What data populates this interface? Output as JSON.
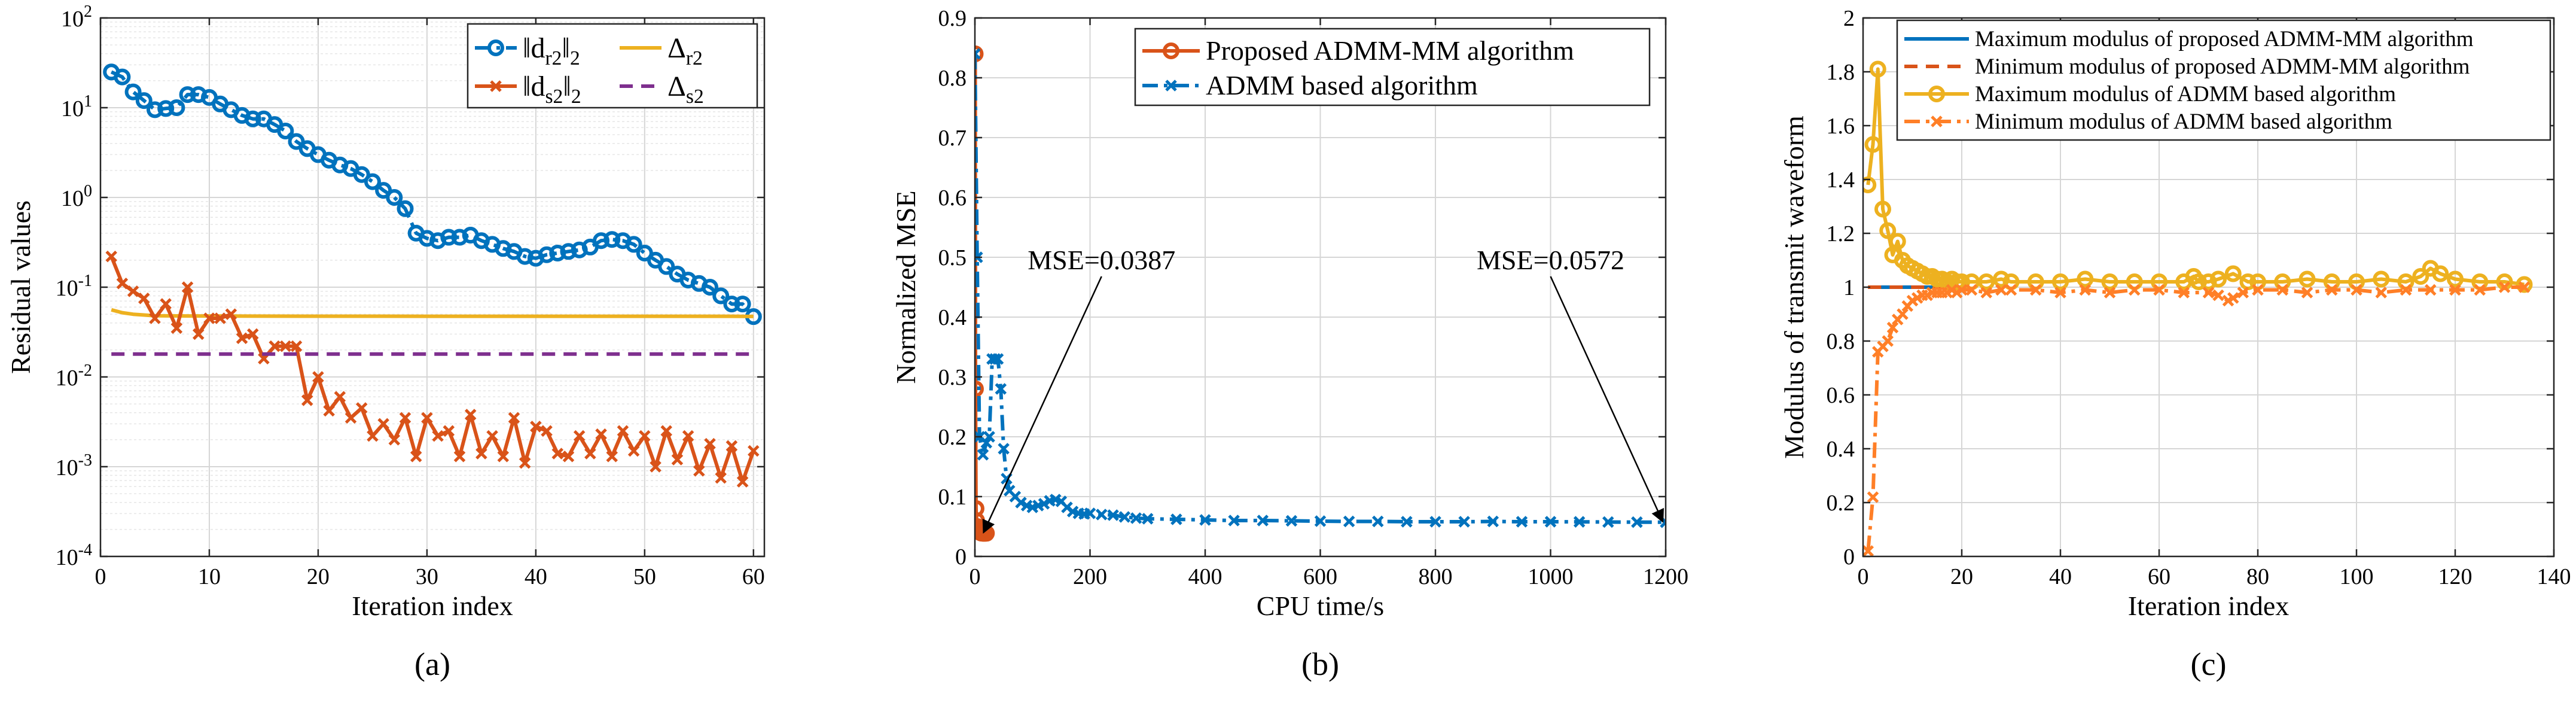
{
  "colors": {
    "blue": "#0072BD",
    "orange": "#D95319",
    "yellow": "#EDB120",
    "purple": "#7E2F8E",
    "grid": "#d6d6d6",
    "axis": "#262626"
  },
  "chart_data": [
    {
      "type": "line",
      "label": "(a)",
      "xlabel": "Iteration index",
      "ylabel": "Residual values",
      "yscale": "log",
      "xlim": [
        0,
        61
      ],
      "ylim": [
        0.0001,
        100
      ],
      "xticks": [
        0,
        10,
        20,
        30,
        40,
        50,
        60
      ],
      "xtick_labels": [
        "0",
        "10",
        "20",
        "30",
        "40",
        "50",
        "60"
      ],
      "ytick_exps": [
        -4,
        -3,
        -2,
        -1,
        0,
        1,
        2
      ],
      "ytick_base": "10",
      "legend": {
        "placement": "top-right",
        "entries": [
          {
            "text": "‖d",
            "sub": "r2",
            "tail": "‖",
            "sub2": "2",
            "series": 0
          },
          {
            "text": "Δ",
            "sub": "r2",
            "tail": "",
            "sub2": "",
            "series": 1
          },
          {
            "text": "‖d",
            "sub": "s2",
            "tail": "‖",
            "sub2": "2",
            "series": 2
          },
          {
            "text": "Δ",
            "sub": "s2",
            "tail": "",
            "sub2": "",
            "series": 3
          }
        ]
      },
      "series": [
        {
          "name": "||d_r2||_2",
          "color": "#0072BD",
          "dash": "dashdot",
          "marker": "circle",
          "x": [
            1,
            2,
            3,
            4,
            5,
            6,
            7,
            8,
            9,
            10,
            11,
            12,
            13,
            14,
            15,
            16,
            17,
            18,
            19,
            20,
            21,
            22,
            23,
            24,
            25,
            26,
            27,
            28,
            29,
            30,
            31,
            32,
            33,
            34,
            35,
            36,
            37,
            38,
            39,
            40,
            41,
            42,
            43,
            44,
            45,
            46,
            47,
            48,
            49,
            50,
            51,
            52,
            53,
            54,
            55,
            56,
            57,
            58,
            59,
            60
          ],
          "y": [
            25,
            22,
            15,
            12,
            9.5,
            9.8,
            10,
            14,
            14,
            13,
            11,
            9.5,
            8.2,
            7.5,
            7.5,
            6.5,
            5.5,
            4.2,
            3.5,
            3.0,
            2.6,
            2.3,
            2.1,
            1.8,
            1.5,
            1.2,
            1.0,
            0.75,
            0.4,
            0.35,
            0.33,
            0.36,
            0.36,
            0.38,
            0.33,
            0.3,
            0.27,
            0.25,
            0.22,
            0.21,
            0.23,
            0.24,
            0.25,
            0.26,
            0.28,
            0.33,
            0.34,
            0.33,
            0.3,
            0.24,
            0.2,
            0.17,
            0.14,
            0.12,
            0.11,
            0.1,
            0.08,
            0.065,
            0.065,
            0.047
          ]
        },
        {
          "name": "Delta_r2",
          "color": "#EDB120",
          "dash": "solid",
          "marker": "none",
          "x": [
            1,
            2,
            3,
            4,
            5,
            8,
            10,
            15,
            20,
            30,
            40,
            50,
            58,
            60
          ],
          "y": [
            0.056,
            0.052,
            0.05,
            0.049,
            0.048,
            0.0478,
            0.0478,
            0.0476,
            0.0475,
            0.0474,
            0.0474,
            0.0474,
            0.0474,
            0.0472
          ]
        },
        {
          "name": "||d_s2||_2",
          "color": "#D95319",
          "dash": "solid",
          "marker": "x",
          "x": [
            1,
            2,
            3,
            4,
            5,
            6,
            7,
            8,
            9,
            10,
            11,
            12,
            13,
            14,
            15,
            16,
            17,
            18,
            19,
            20,
            21,
            22,
            23,
            24,
            25,
            26,
            27,
            28,
            29,
            30,
            31,
            32,
            33,
            34,
            35,
            36,
            37,
            38,
            39,
            40,
            41,
            42,
            43,
            44,
            45,
            46,
            47,
            48,
            49,
            50,
            51,
            52,
            53,
            54,
            55,
            56,
            57,
            58,
            59,
            60
          ],
          "y": [
            0.22,
            0.11,
            0.09,
            0.075,
            0.045,
            0.065,
            0.035,
            0.1,
            0.03,
            0.045,
            0.045,
            0.05,
            0.027,
            0.03,
            0.016,
            0.022,
            0.022,
            0.022,
            0.0055,
            0.01,
            0.0042,
            0.006,
            0.0035,
            0.0045,
            0.0022,
            0.003,
            0.002,
            0.0035,
            0.0013,
            0.0035,
            0.0022,
            0.0025,
            0.0013,
            0.0038,
            0.0014,
            0.0022,
            0.0013,
            0.0035,
            0.0011,
            0.0028,
            0.0025,
            0.0014,
            0.0013,
            0.0022,
            0.0014,
            0.0023,
            0.0013,
            0.0025,
            0.0015,
            0.0022,
            0.001,
            0.0025,
            0.0012,
            0.0022,
            0.0009,
            0.0018,
            0.00075,
            0.0017,
            0.00068,
            0.0015
          ]
        },
        {
          "name": "Delta_s2",
          "color": "#7E2F8E",
          "dash": "dashed",
          "marker": "none",
          "x": [
            1,
            60
          ],
          "y": [
            0.018,
            0.018
          ]
        }
      ]
    },
    {
      "type": "line",
      "label": "(b)",
      "xlabel": "CPU time/s",
      "ylabel": "Normalized MSE",
      "yscale": "linear",
      "xlim": [
        0,
        1200
      ],
      "ylim": [
        0,
        0.9
      ],
      "xticks": [
        0,
        200,
        400,
        600,
        800,
        1000,
        1200
      ],
      "xtick_labels": [
        "0",
        "200",
        "400",
        "600",
        "800",
        "1000",
        "1200"
      ],
      "yticks": [
        0,
        0.1,
        0.2,
        0.3,
        0.4,
        0.5,
        0.6,
        0.7,
        0.8,
        0.9
      ],
      "ytick_labels": [
        "0",
        "0.1",
        "0.2",
        "0.3",
        "0.4",
        "0.5",
        "0.6",
        "0.7",
        "0.8",
        "0.9"
      ],
      "legend": {
        "placement": "top-right",
        "entries": [
          {
            "text": "Proposed ADMM-MM algorithm",
            "series": 0
          },
          {
            "text": "ADMM based algorithm",
            "series": 1
          }
        ]
      },
      "annotations": [
        {
          "text": "MSE=0.0387",
          "text_x": 220,
          "text_y": 0.48,
          "target_x": 15,
          "target_y": 0.04
        },
        {
          "text": "MSE=0.0572",
          "text_x": 1000,
          "text_y": 0.48,
          "target_x": 1195,
          "target_y": 0.058
        }
      ],
      "series": [
        {
          "name": "Proposed ADMM-MM algorithm",
          "color": "#D95319",
          "dash": "solid",
          "marker": "circle",
          "x": [
            0.5,
            1,
            2,
            3,
            4,
            5,
            6,
            7,
            8,
            9,
            10,
            11,
            12,
            13,
            14,
            15,
            16,
            18,
            20
          ],
          "y": [
            0.84,
            0.28,
            0.08,
            0.06,
            0.05,
            0.045,
            0.043,
            0.042,
            0.041,
            0.04,
            0.04,
            0.039,
            0.039,
            0.039,
            0.0387,
            0.0387,
            0.0387,
            0.0387,
            0.0387
          ]
        },
        {
          "name": "ADMM based algorithm",
          "color": "#0072BD",
          "dash": "dashdot",
          "marker": "x",
          "x": [
            0,
            4,
            8,
            14,
            20,
            25,
            30,
            35,
            40,
            45,
            50,
            55,
            60,
            70,
            80,
            90,
            100,
            110,
            120,
            130,
            140,
            150,
            160,
            170,
            180,
            190,
            200,
            220,
            240,
            260,
            280,
            300,
            350,
            400,
            450,
            500,
            550,
            600,
            650,
            700,
            750,
            800,
            850,
            900,
            950,
            1000,
            1050,
            1100,
            1150,
            1200
          ],
          "y": [
            0.84,
            0.5,
            0.2,
            0.17,
            0.19,
            0.2,
            0.33,
            0.33,
            0.33,
            0.28,
            0.18,
            0.13,
            0.11,
            0.1,
            0.09,
            0.085,
            0.082,
            0.085,
            0.088,
            0.093,
            0.095,
            0.092,
            0.082,
            0.075,
            0.072,
            0.071,
            0.072,
            0.07,
            0.069,
            0.066,
            0.064,
            0.063,
            0.062,
            0.061,
            0.06,
            0.06,
            0.0595,
            0.059,
            0.0585,
            0.0585,
            0.058,
            0.058,
            0.058,
            0.0585,
            0.058,
            0.058,
            0.0578,
            0.0575,
            0.0573,
            0.0572
          ]
        }
      ]
    },
    {
      "type": "line",
      "label": "(c)",
      "xlabel": "Iteration index",
      "ylabel": "Modulus of transmit waveform",
      "yscale": "linear",
      "xlim": [
        0,
        140
      ],
      "ylim": [
        0,
        2
      ],
      "xticks": [
        0,
        20,
        40,
        60,
        80,
        100,
        120,
        140
      ],
      "xtick_labels": [
        "0",
        "20",
        "40",
        "60",
        "80",
        "100",
        "120",
        "140"
      ],
      "yticks": [
        0,
        0.2,
        0.4,
        0.6,
        0.8,
        1,
        1.2,
        1.4,
        1.6,
        1.8,
        2
      ],
      "ytick_labels": [
        "0",
        "0.2",
        "0.4",
        "0.6",
        "0.8",
        "1",
        "1.2",
        "1.4",
        "1.6",
        "1.8",
        "2"
      ],
      "legend": {
        "placement": "top-right",
        "entries": [
          {
            "text": "Maximum modulus of proposed ADMM-MM algorithm",
            "series": 0
          },
          {
            "text": "Minimum modulus of proposed ADMM-MM algorithm",
            "series": 1
          },
          {
            "text": "Maximum modulus of ADMM based algorithm",
            "series": 2
          },
          {
            "text": "Minimum modulus of ADMM based algorithm",
            "series": 3
          }
        ]
      },
      "series": [
        {
          "name": "Maximum modulus of proposed ADMM-MM algorithm",
          "color": "#0072BD",
          "dash": "solid",
          "marker": "none",
          "x": [
            1,
            20
          ],
          "y": [
            1.0,
            1.0
          ]
        },
        {
          "name": "Minimum modulus of proposed ADMM-MM algorithm",
          "color": "#D95319",
          "dash": "dashed",
          "marker": "none",
          "x": [
            1,
            20
          ],
          "y": [
            1.0,
            1.0
          ]
        },
        {
          "name": "Maximum modulus of ADMM based algorithm",
          "color": "#EDB120",
          "dash": "solid",
          "marker": "circle",
          "x": [
            1,
            2,
            3,
            4,
            5,
            6,
            7,
            8,
            9,
            10,
            11,
            12,
            13,
            14,
            15,
            16,
            17,
            18,
            19,
            20,
            22,
            25,
            28,
            30,
            35,
            40,
            45,
            50,
            55,
            60,
            65,
            67,
            68,
            70,
            72,
            75,
            78,
            80,
            85,
            90,
            95,
            100,
            105,
            110,
            113,
            115,
            117,
            120,
            125,
            130,
            134
          ],
          "y": [
            1.38,
            1.53,
            1.81,
            1.29,
            1.21,
            1.12,
            1.17,
            1.1,
            1.08,
            1.07,
            1.06,
            1.05,
            1.04,
            1.04,
            1.03,
            1.03,
            1.02,
            1.03,
            1.02,
            1.02,
            1.02,
            1.02,
            1.03,
            1.02,
            1.02,
            1.02,
            1.03,
            1.02,
            1.02,
            1.02,
            1.02,
            1.04,
            1.02,
            1.02,
            1.03,
            1.05,
            1.02,
            1.02,
            1.02,
            1.03,
            1.02,
            1.02,
            1.03,
            1.02,
            1.04,
            1.07,
            1.05,
            1.03,
            1.02,
            1.02,
            1.01
          ]
        },
        {
          "name": "Minimum modulus of ADMM based algorithm",
          "color": "#FF7F27",
          "dash": "dashdot",
          "marker": "x",
          "x": [
            1,
            2,
            3,
            4,
            5,
            6,
            7,
            8,
            9,
            10,
            11,
            12,
            13,
            14,
            15,
            16,
            17,
            18,
            19,
            20,
            22,
            25,
            28,
            30,
            35,
            40,
            45,
            50,
            55,
            60,
            65,
            70,
            72,
            74,
            75,
            77,
            80,
            85,
            90,
            95,
            100,
            105,
            110,
            115,
            120,
            125,
            130,
            134
          ],
          "y": [
            0.02,
            0.22,
            0.76,
            0.78,
            0.8,
            0.85,
            0.88,
            0.9,
            0.93,
            0.95,
            0.96,
            0.97,
            0.97,
            0.98,
            0.98,
            0.98,
            0.98,
            0.99,
            0.98,
            0.99,
            0.99,
            0.98,
            0.99,
            0.99,
            0.99,
            0.98,
            0.99,
            0.98,
            0.99,
            0.99,
            0.98,
            0.98,
            0.97,
            0.95,
            0.96,
            0.98,
            0.99,
            0.99,
            0.98,
            0.99,
            0.99,
            0.98,
            0.99,
            0.99,
            0.99,
            0.99,
            1.0,
            1.0
          ]
        }
      ]
    }
  ]
}
